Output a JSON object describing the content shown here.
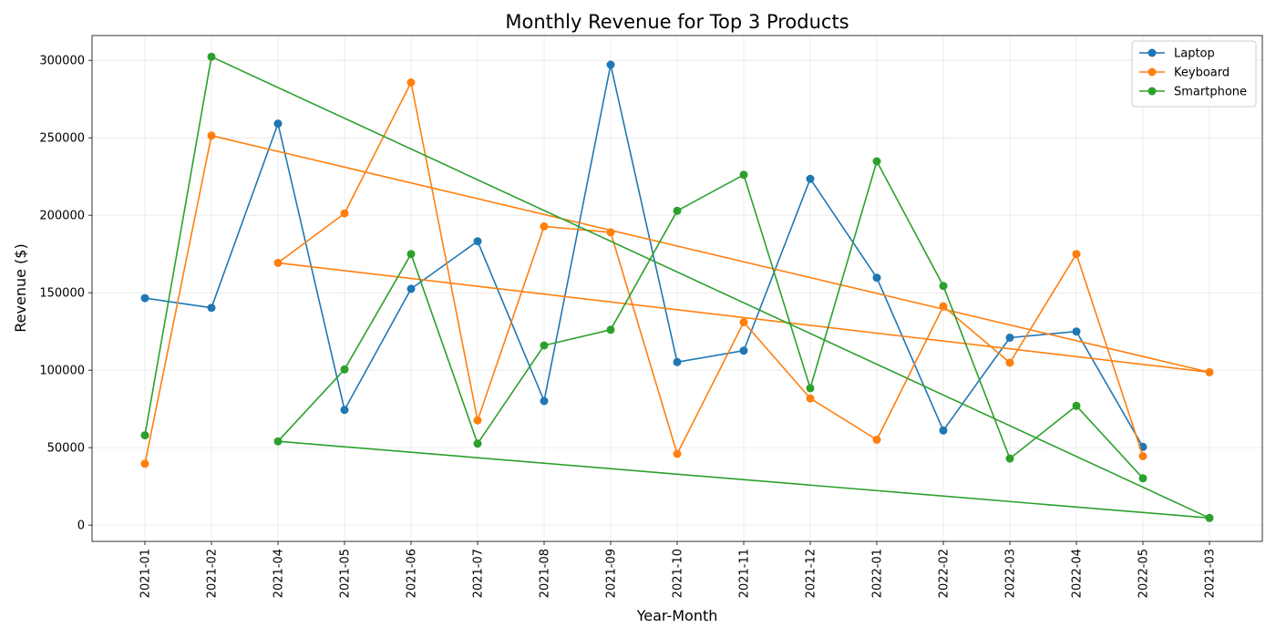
{
  "chart_data": {
    "type": "line",
    "title": "Monthly Revenue for Top 3 Products",
    "xlabel": "Year-Month",
    "ylabel": "Revenue ($)",
    "categories": [
      "2021-01",
      "2021-02",
      "2021-04",
      "2021-05",
      "2021-06",
      "2021-07",
      "2021-08",
      "2021-09",
      "2021-10",
      "2021-11",
      "2021-12",
      "2022-01",
      "2022-02",
      "2022-03",
      "2022-04",
      "2022-05",
      "2021-03"
    ],
    "ylim": [
      -10500,
      316000
    ],
    "yticks": [
      0,
      50000,
      100000,
      150000,
      200000,
      250000,
      300000
    ],
    "ytick_labels": [
      "0",
      "50000",
      "100000",
      "150000",
      "200000",
      "250000",
      "300000"
    ],
    "grid": true,
    "legend_position": "top-right",
    "series": [
      {
        "name": "Laptop",
        "color": "#1f77b4",
        "points": [
          [
            "2021-01",
            146500
          ],
          [
            "2021-02",
            140300
          ],
          [
            "2021-04",
            259200
          ],
          [
            "2021-05",
            74400
          ],
          [
            "2021-06",
            152500
          ],
          [
            "2021-07",
            183200
          ],
          [
            "2021-08",
            80100
          ],
          [
            "2021-09",
            297200
          ],
          [
            "2021-10",
            105200
          ],
          [
            "2021-11",
            112600
          ],
          [
            "2021-12",
            223500
          ],
          [
            "2022-01",
            159700
          ],
          [
            "2022-02",
            61100
          ],
          [
            "2022-03",
            121000
          ],
          [
            "2022-04",
            125000
          ],
          [
            "2022-05",
            50500
          ]
        ]
      },
      {
        "name": "Keyboard",
        "color": "#ff7f0e",
        "points": [
          [
            "2021-01",
            39600
          ],
          [
            "2021-02",
            251400
          ],
          [
            "2021-03",
            98700
          ],
          [
            "2021-04",
            169300
          ],
          [
            "2021-05",
            201200
          ],
          [
            "2021-06",
            285700
          ],
          [
            "2021-07",
            67600
          ],
          [
            "2021-08",
            192800
          ],
          [
            "2021-09",
            189000
          ],
          [
            "2021-10",
            46000
          ],
          [
            "2021-11",
            131000
          ],
          [
            "2021-12",
            81800
          ],
          [
            "2022-01",
            55100
          ],
          [
            "2022-02",
            141200
          ],
          [
            "2022-03",
            104800
          ],
          [
            "2022-04",
            175000
          ],
          [
            "2022-05",
            44500
          ]
        ]
      },
      {
        "name": "Smartphone",
        "color": "#2ca02c",
        "points": [
          [
            "2021-01",
            58000
          ],
          [
            "2021-02",
            302300
          ],
          [
            "2021-03",
            4600
          ],
          [
            "2021-04",
            54100
          ],
          [
            "2021-05",
            100500
          ],
          [
            "2021-06",
            175000
          ],
          [
            "2021-07",
            52600
          ],
          [
            "2021-08",
            116000
          ],
          [
            "2021-09",
            126100
          ],
          [
            "2021-10",
            202900
          ],
          [
            "2021-11",
            226100
          ],
          [
            "2021-12",
            88400
          ],
          [
            "2022-01",
            234800
          ],
          [
            "2022-02",
            154400
          ],
          [
            "2022-03",
            43000
          ],
          [
            "2022-04",
            77000
          ],
          [
            "2022-05",
            30200
          ]
        ]
      }
    ]
  }
}
